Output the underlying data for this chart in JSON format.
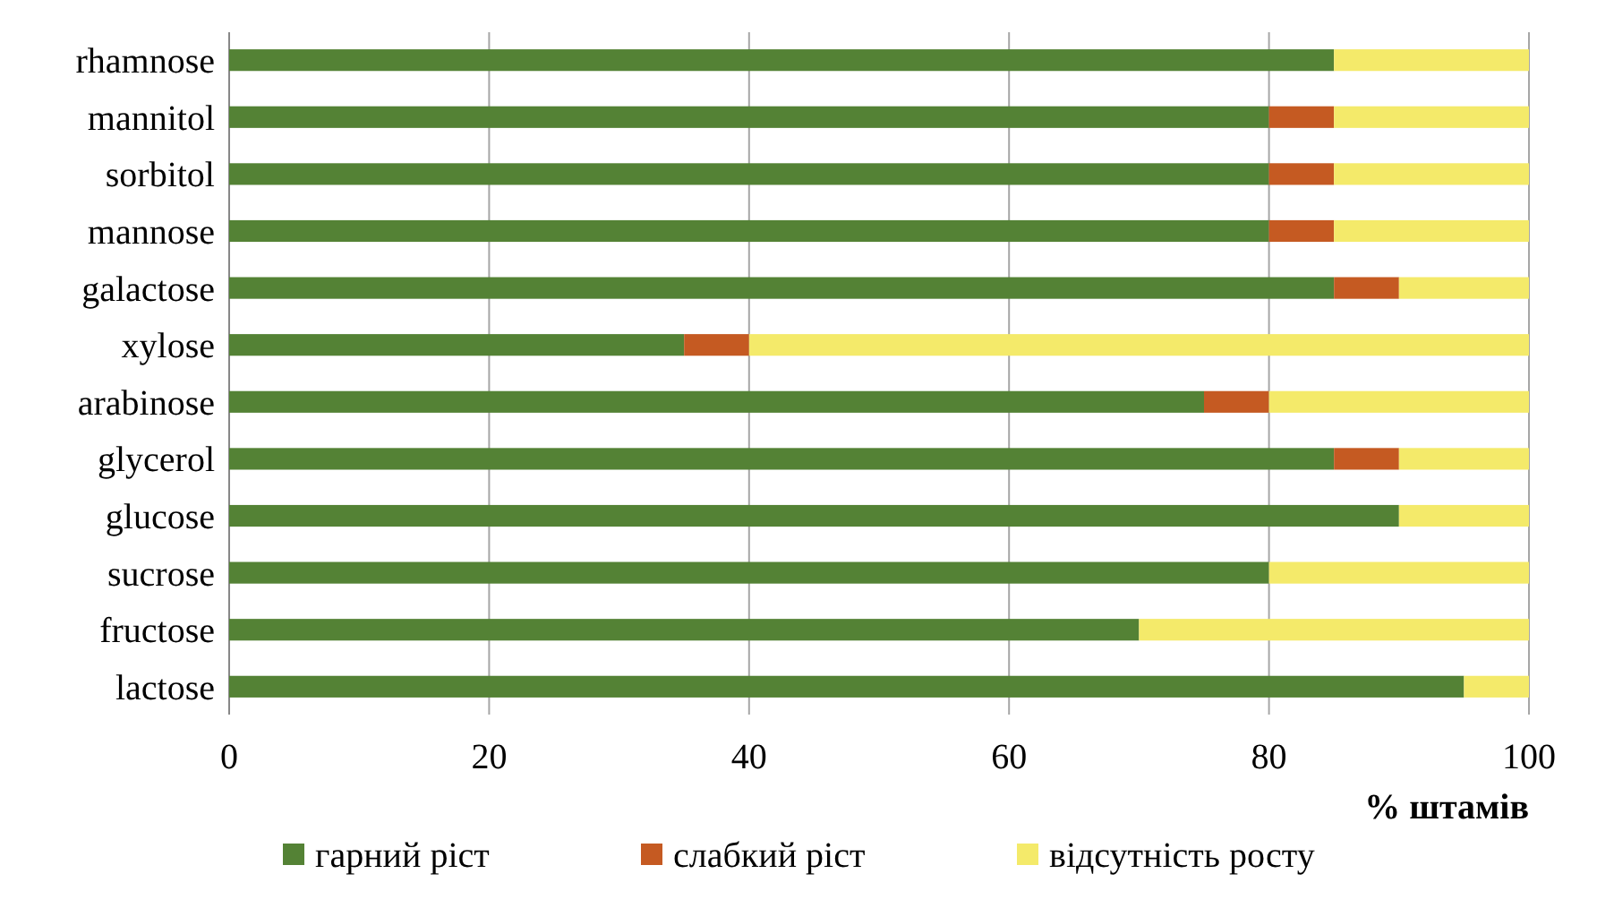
{
  "chart_data": {
    "type": "bar",
    "orientation": "horizontal",
    "stacked": true,
    "xlabel": "% штамів",
    "categories": [
      "rhamnose",
      "mannitol",
      "sorbitol",
      "mannose",
      "galactose",
      "xylose",
      "arabinose",
      "glycerol",
      "glucose",
      "sucrose",
      "fructose",
      "lactose"
    ],
    "series": [
      {
        "name": "гарний ріст",
        "color": "#548235",
        "values": [
          85,
          80,
          80,
          80,
          85,
          35,
          75,
          85,
          90,
          80,
          70,
          95
        ]
      },
      {
        "name": "слабкий ріст",
        "color": "#c55a22",
        "values": [
          0,
          5,
          5,
          5,
          5,
          5,
          5,
          5,
          0,
          0,
          0,
          0
        ]
      },
      {
        "name": "відсутність росту",
        "color": "#f4ea6a",
        "values": [
          15,
          15,
          15,
          15,
          10,
          60,
          20,
          10,
          10,
          20,
          30,
          5
        ]
      }
    ],
    "xlim": [
      0,
      100
    ],
    "xticks": [
      0,
      20,
      40,
      60,
      80,
      100
    ],
    "grid": "x",
    "legend": "bottom"
  }
}
